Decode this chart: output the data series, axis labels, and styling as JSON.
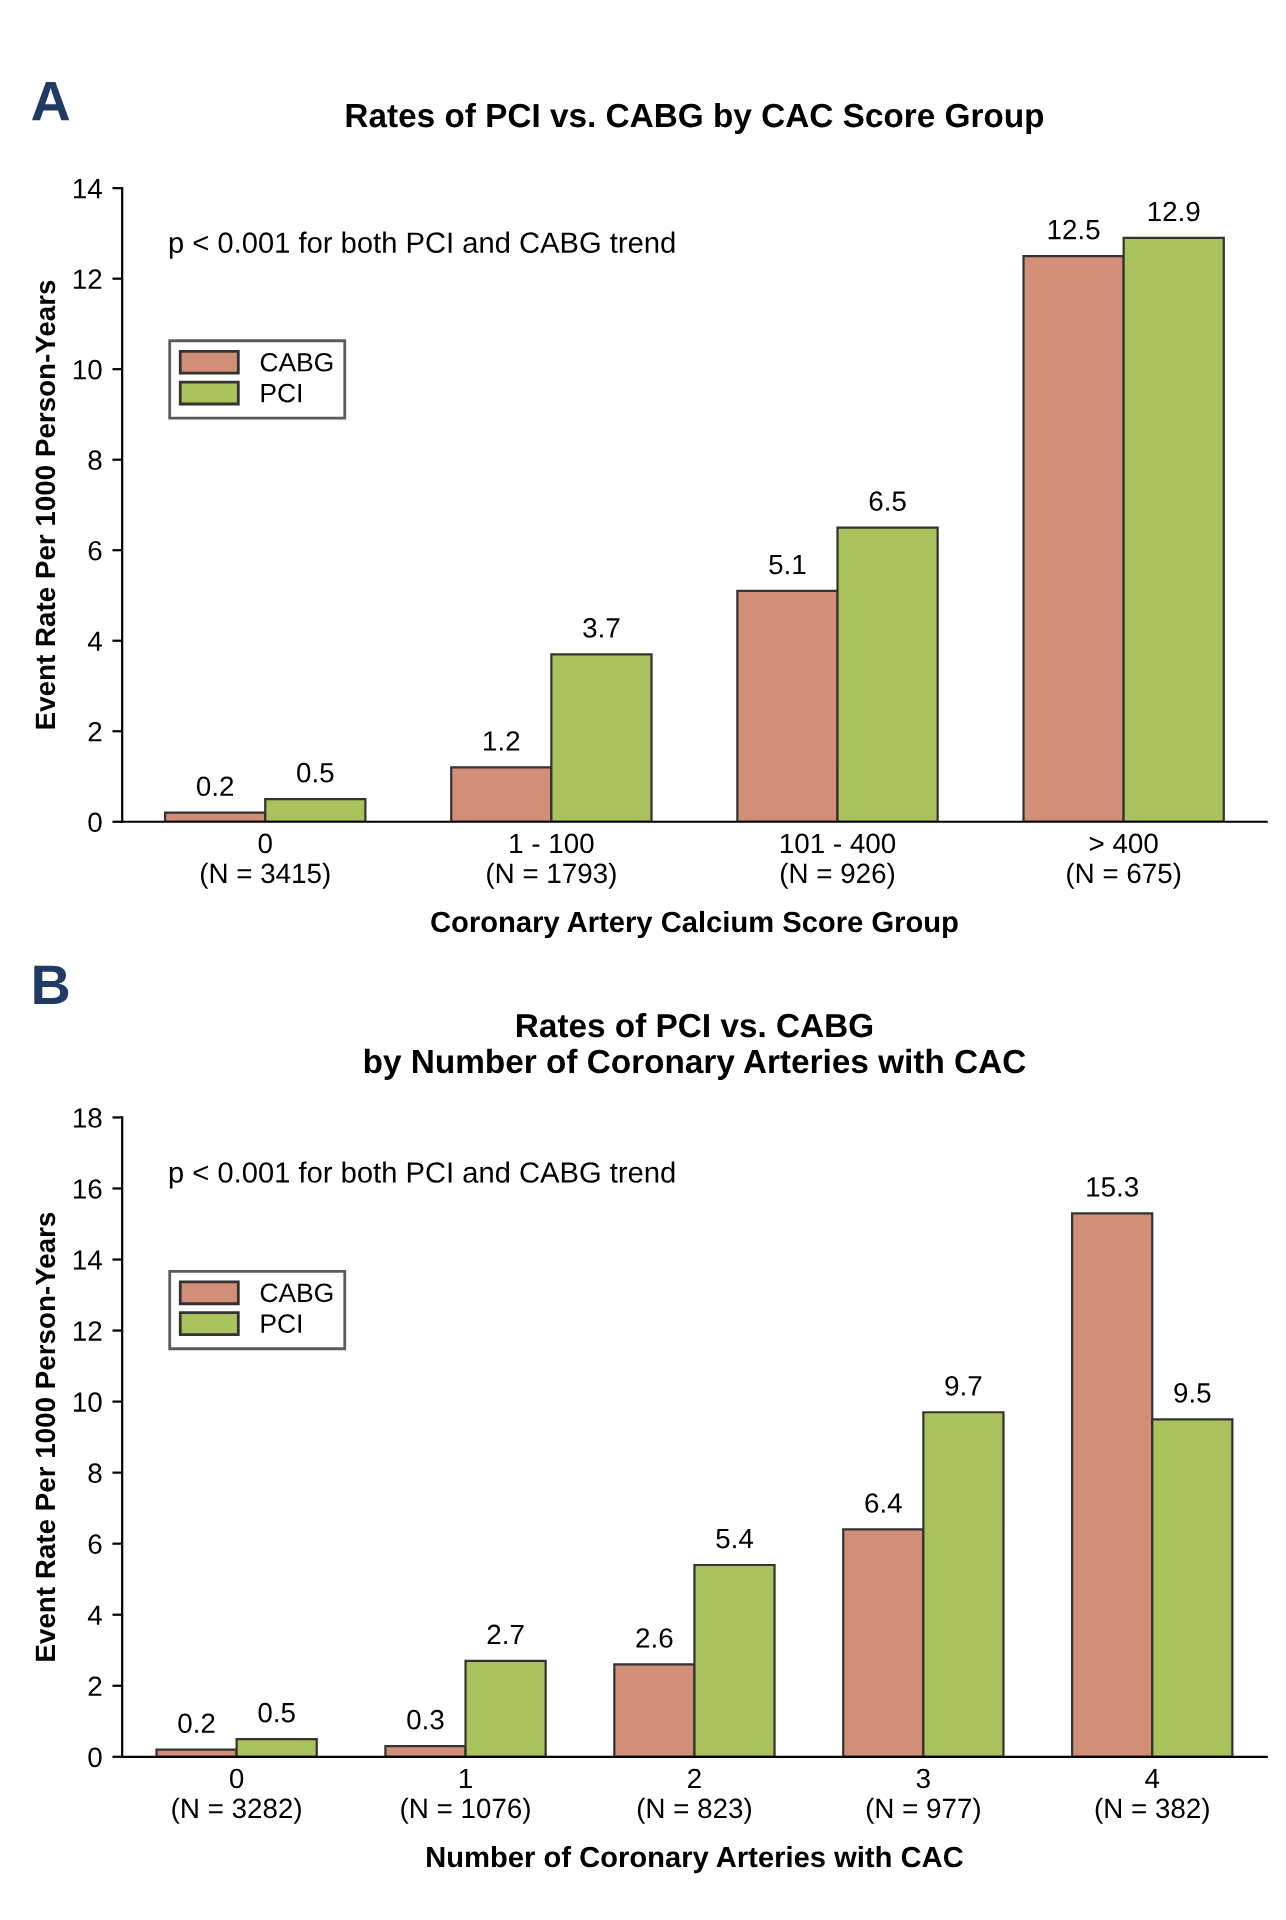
{
  "chart_data": [
    {
      "type": "bar",
      "title": "Rates of PCI vs. CABG by CAC Score Group",
      "xlabel": "Coronary Artery Calcium Score Group",
      "ylabel": "Event Rate Per 1000 Person-Years",
      "annotations": [
        "A",
        "p < 0.001 for both PCI and CABG trend"
      ],
      "categories": [
        "0\n(N = 3415)",
        "1 - 100\n(N = 1793)",
        "101 - 400\n(N = 926)",
        "> 400\n(N = 675)"
      ],
      "series": [
        {
          "name": "CABG",
          "color": "#d28f78",
          "values": [
            0.2,
            1.2,
            5.1,
            12.5
          ]
        },
        {
          "name": "PCI",
          "color": "#a9c25c",
          "values": [
            0.5,
            3.7,
            6.5,
            12.9
          ]
        }
      ],
      "ylim": [
        0,
        14
      ],
      "yticks": [
        0,
        2,
        4,
        6,
        8,
        10,
        12,
        14
      ],
      "data_labels": true,
      "legend": "top left",
      "grid": false
    },
    {
      "type": "bar",
      "title": "Rates of PCI vs. CABG\nby Number of Coronary Arteries with CAC",
      "xlabel": "Number of Coronary Arteries with CAC",
      "ylabel": "Event Rate Per 1000 Person-Years",
      "annotations": [
        "B",
        "p < 0.001 for both PCI and CABG trend"
      ],
      "categories": [
        "0\n(N = 3282)",
        "1\n(N = 1076)",
        "2\n(N = 823)",
        "3\n(N = 977)",
        "4\n(N = 382)"
      ],
      "series": [
        {
          "name": "CABG",
          "color": "#d28f78",
          "values": [
            0.2,
            0.3,
            2.6,
            6.4,
            15.3
          ]
        },
        {
          "name": "PCI",
          "color": "#a9c25c",
          "values": [
            0.5,
            2.7,
            5.4,
            9.7,
            9.5
          ]
        }
      ],
      "ylim": [
        0,
        18
      ],
      "yticks": [
        0,
        2,
        4,
        6,
        8,
        10,
        12,
        14,
        16,
        18
      ],
      "data_labels": true,
      "legend": "top left",
      "grid": false
    }
  ]
}
